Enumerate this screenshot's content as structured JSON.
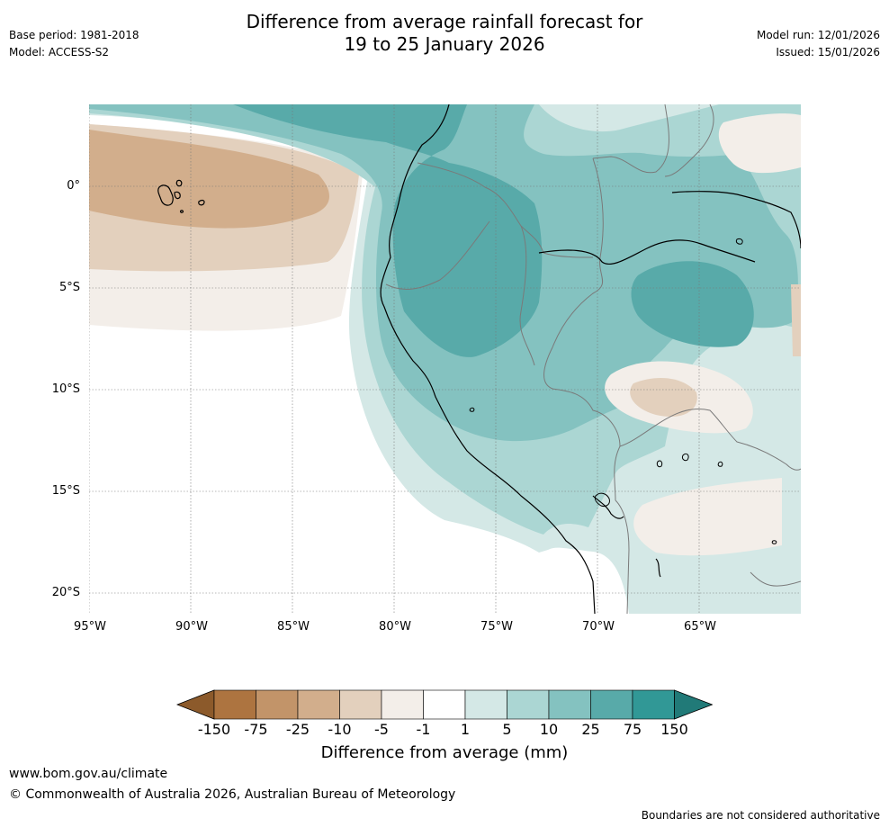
{
  "title": {
    "line1": "Difference from average rainfall forecast for",
    "line2": "19 to 25 January 2026"
  },
  "meta": {
    "base_period": "Base period: 1981-2018",
    "model": "Model: ACCESS-S2",
    "model_run": "Model run: 12/01/2026",
    "issued": "Issued: 15/01/2026"
  },
  "map": {
    "latitude_labels": [
      "0°",
      "5°S",
      "10°S",
      "15°S",
      "20°S"
    ],
    "longitude_labels": [
      "95°W",
      "90°W",
      "85°W",
      "80°W",
      "75°W",
      "70°W",
      "65°W"
    ]
  },
  "legend": {
    "title": "Difference from average (mm)",
    "ticks": [
      "-150",
      "-75",
      "-25",
      "-10",
      "-5",
      "-1",
      "1",
      "5",
      "10",
      "25",
      "75",
      "150"
    ],
    "colors": [
      "#8c5a2b",
      "#ad7440",
      "#c29469",
      "#d2ae8c",
      "#e3d0bd",
      "#f3eee9",
      "#ffffff",
      "#d4e8e6",
      "#abd6d3",
      "#84c2c0",
      "#58aaa9",
      "#319896",
      "#217a78"
    ]
  },
  "footer": {
    "website": "www.bom.gov.au/climate",
    "copyright": "© Commonwealth of Australia 2026, Australian Bureau of Meteorology",
    "disclaimer": "Boundaries are not considered authoritative"
  }
}
